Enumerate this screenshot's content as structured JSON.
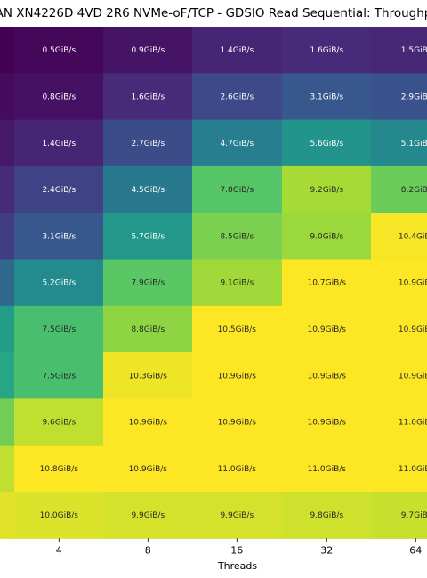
{
  "chart_data": {
    "type": "heatmap",
    "title": "AN XN4226D 4VD 2R6 NVMe-oF/TCP - GDSIO Read Sequential: Throughp",
    "xlabel": "Threads",
    "ylabel": "",
    "x_tick_labels": [
      "",
      "4",
      "8",
      "16",
      "32",
      "64"
    ],
    "colormap": "viridis",
    "value_unit": "GiB/s",
    "color_range": [
      0.3,
      10.5
    ],
    "rows": [
      {
        "values": [
          0.3,
          0.5,
          0.9,
          1.4,
          1.6,
          1.5
        ],
        "labels": [
          "",
          "0.5GiB/s",
          "0.9GiB/s",
          "1.4GiB/s",
          "1.6GiB/s",
          "1.5GiB/"
        ]
      },
      {
        "values": [
          0.6,
          0.8,
          1.6,
          2.6,
          3.1,
          2.9
        ],
        "labels": [
          "",
          "0.8GiB/s",
          "1.6GiB/s",
          "2.6GiB/s",
          "3.1GiB/s",
          "2.9GiB/"
        ]
      },
      {
        "values": [
          1.0,
          1.4,
          2.7,
          4.7,
          5.6,
          5.1
        ],
        "labels": [
          "",
          "1.4GiB/s",
          "2.7GiB/s",
          "4.7GiB/s",
          "5.6GiB/s",
          "5.1GiB/"
        ]
      },
      {
        "values": [
          1.6,
          2.4,
          4.5,
          7.8,
          9.2,
          8.2
        ],
        "labels": [
          "",
          "2.4GiB/s",
          "4.5GiB/s",
          "7.8GiB/s",
          "9.2GiB/s",
          "8.2GiB/"
        ]
      },
      {
        "values": [
          2.2,
          3.1,
          5.7,
          8.5,
          9.0,
          10.4
        ],
        "labels": [
          "",
          "3.1GiB/s",
          "5.7GiB/s",
          "8.5GiB/s",
          "9.0GiB/s",
          "10.4GiB/"
        ]
      },
      {
        "values": [
          3.8,
          5.2,
          7.9,
          9.1,
          10.7,
          10.9
        ],
        "labels": [
          "",
          "5.2GiB/s",
          "7.9GiB/s",
          "9.1GiB/s",
          "10.7GiB/s",
          "10.9GiB/"
        ]
      },
      {
        "values": [
          6.0,
          7.5,
          8.8,
          10.5,
          10.9,
          10.9
        ],
        "labels": [
          "",
          "7.5GiB/s",
          "8.8GiB/s",
          "10.5GiB/s",
          "10.9GiB/s",
          "10.9GiB/"
        ]
      },
      {
        "values": [
          6.4,
          7.5,
          10.3,
          10.9,
          10.9,
          10.9
        ],
        "labels": [
          "",
          "7.5GiB/s",
          "10.3GiB/s",
          "10.9GiB/s",
          "10.9GiB/s",
          "10.9GiB/"
        ]
      },
      {
        "values": [
          8.3,
          9.6,
          10.9,
          10.9,
          10.9,
          11.0
        ],
        "labels": [
          "",
          "9.6GiB/s",
          "10.9GiB/s",
          "10.9GiB/s",
          "10.9GiB/s",
          "11.0GiB/"
        ]
      },
      {
        "values": [
          9.6,
          10.8,
          10.9,
          11.0,
          11.0,
          11.0
        ],
        "labels": [
          "",
          "10.8GiB/s",
          "10.9GiB/s",
          "11.0GiB/s",
          "11.0GiB/s",
          "11.0GiB/"
        ]
      },
      {
        "values": [
          10.1,
          10.0,
          9.9,
          9.9,
          9.8,
          9.7
        ],
        "labels": [
          "",
          "10.0GiB/s",
          "9.9GiB/s",
          "9.9GiB/s",
          "9.8GiB/s",
          "9.7GiB/"
        ]
      }
    ]
  }
}
